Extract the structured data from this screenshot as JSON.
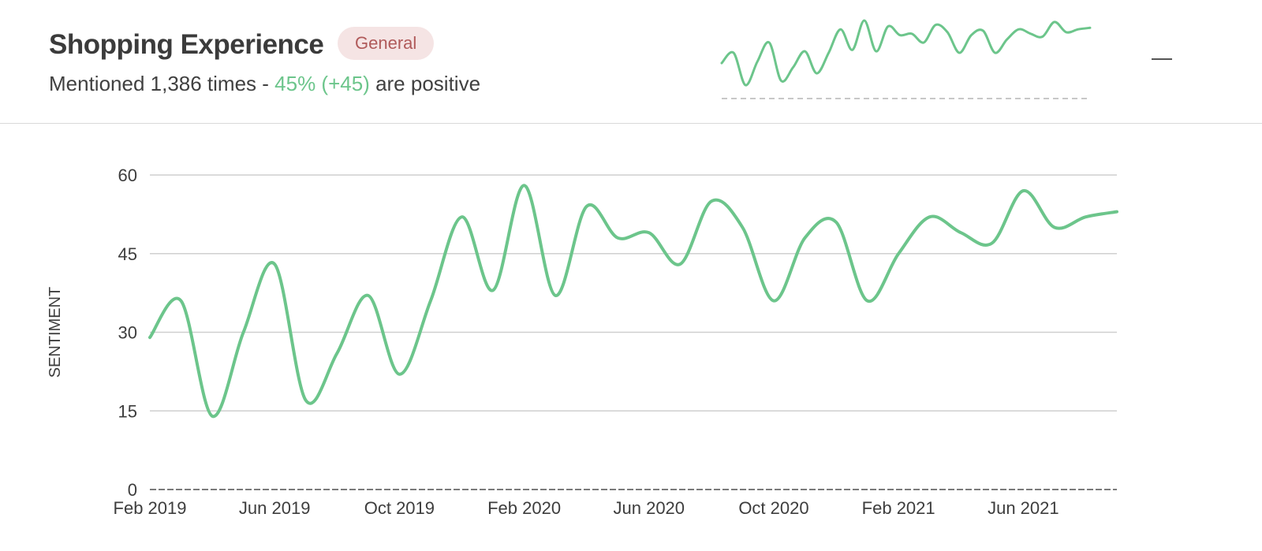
{
  "header": {
    "title": "Shopping Experience",
    "badge": "General",
    "subtitle_prefix": "Mentioned 1,386 times - ",
    "subtitle_positive": "45% (+45)",
    "subtitle_suffix": " are positive"
  },
  "colors": {
    "line": "#6cc58b",
    "badge_bg": "#f5e4e4",
    "badge_text": "#b05a5a",
    "grid": "#cfcfcf",
    "text": "#3d3d3d"
  },
  "icons": {
    "collapse": "minus-icon"
  },
  "chart_data": {
    "type": "line",
    "ylabel": "SENTIMENT",
    "xlabel": "",
    "ylim": [
      0,
      60
    ],
    "yticks": [
      0,
      15,
      30,
      45,
      60
    ],
    "xlim": [
      "2019-02",
      "2021-09"
    ],
    "xticks": [
      "Feb 2019",
      "Jun 2019",
      "Oct 2019",
      "Feb 2020",
      "Jun 2020",
      "Oct 2020",
      "Feb 2021",
      "Jun 2021"
    ],
    "grid": true,
    "x": [
      "2019-02",
      "2019-03",
      "2019-04",
      "2019-05",
      "2019-06",
      "2019-07",
      "2019-08",
      "2019-09",
      "2019-10",
      "2019-11",
      "2019-12",
      "2020-01",
      "2020-02",
      "2020-03",
      "2020-04",
      "2020-05",
      "2020-06",
      "2020-07",
      "2020-08",
      "2020-09",
      "2020-10",
      "2020-11",
      "2020-12",
      "2021-01",
      "2021-02",
      "2021-03",
      "2021-04",
      "2021-05",
      "2021-06",
      "2021-07",
      "2021-08",
      "2021-09"
    ],
    "series": [
      {
        "values": [
          29,
          36,
          14,
          30,
          43,
          17,
          26,
          37,
          22,
          36,
          52,
          38,
          58,
          37,
          54,
          48,
          49,
          43,
          55,
          50,
          36,
          48,
          51,
          36,
          45,
          52,
          49,
          47,
          57,
          50,
          52,
          53
        ]
      }
    ]
  }
}
